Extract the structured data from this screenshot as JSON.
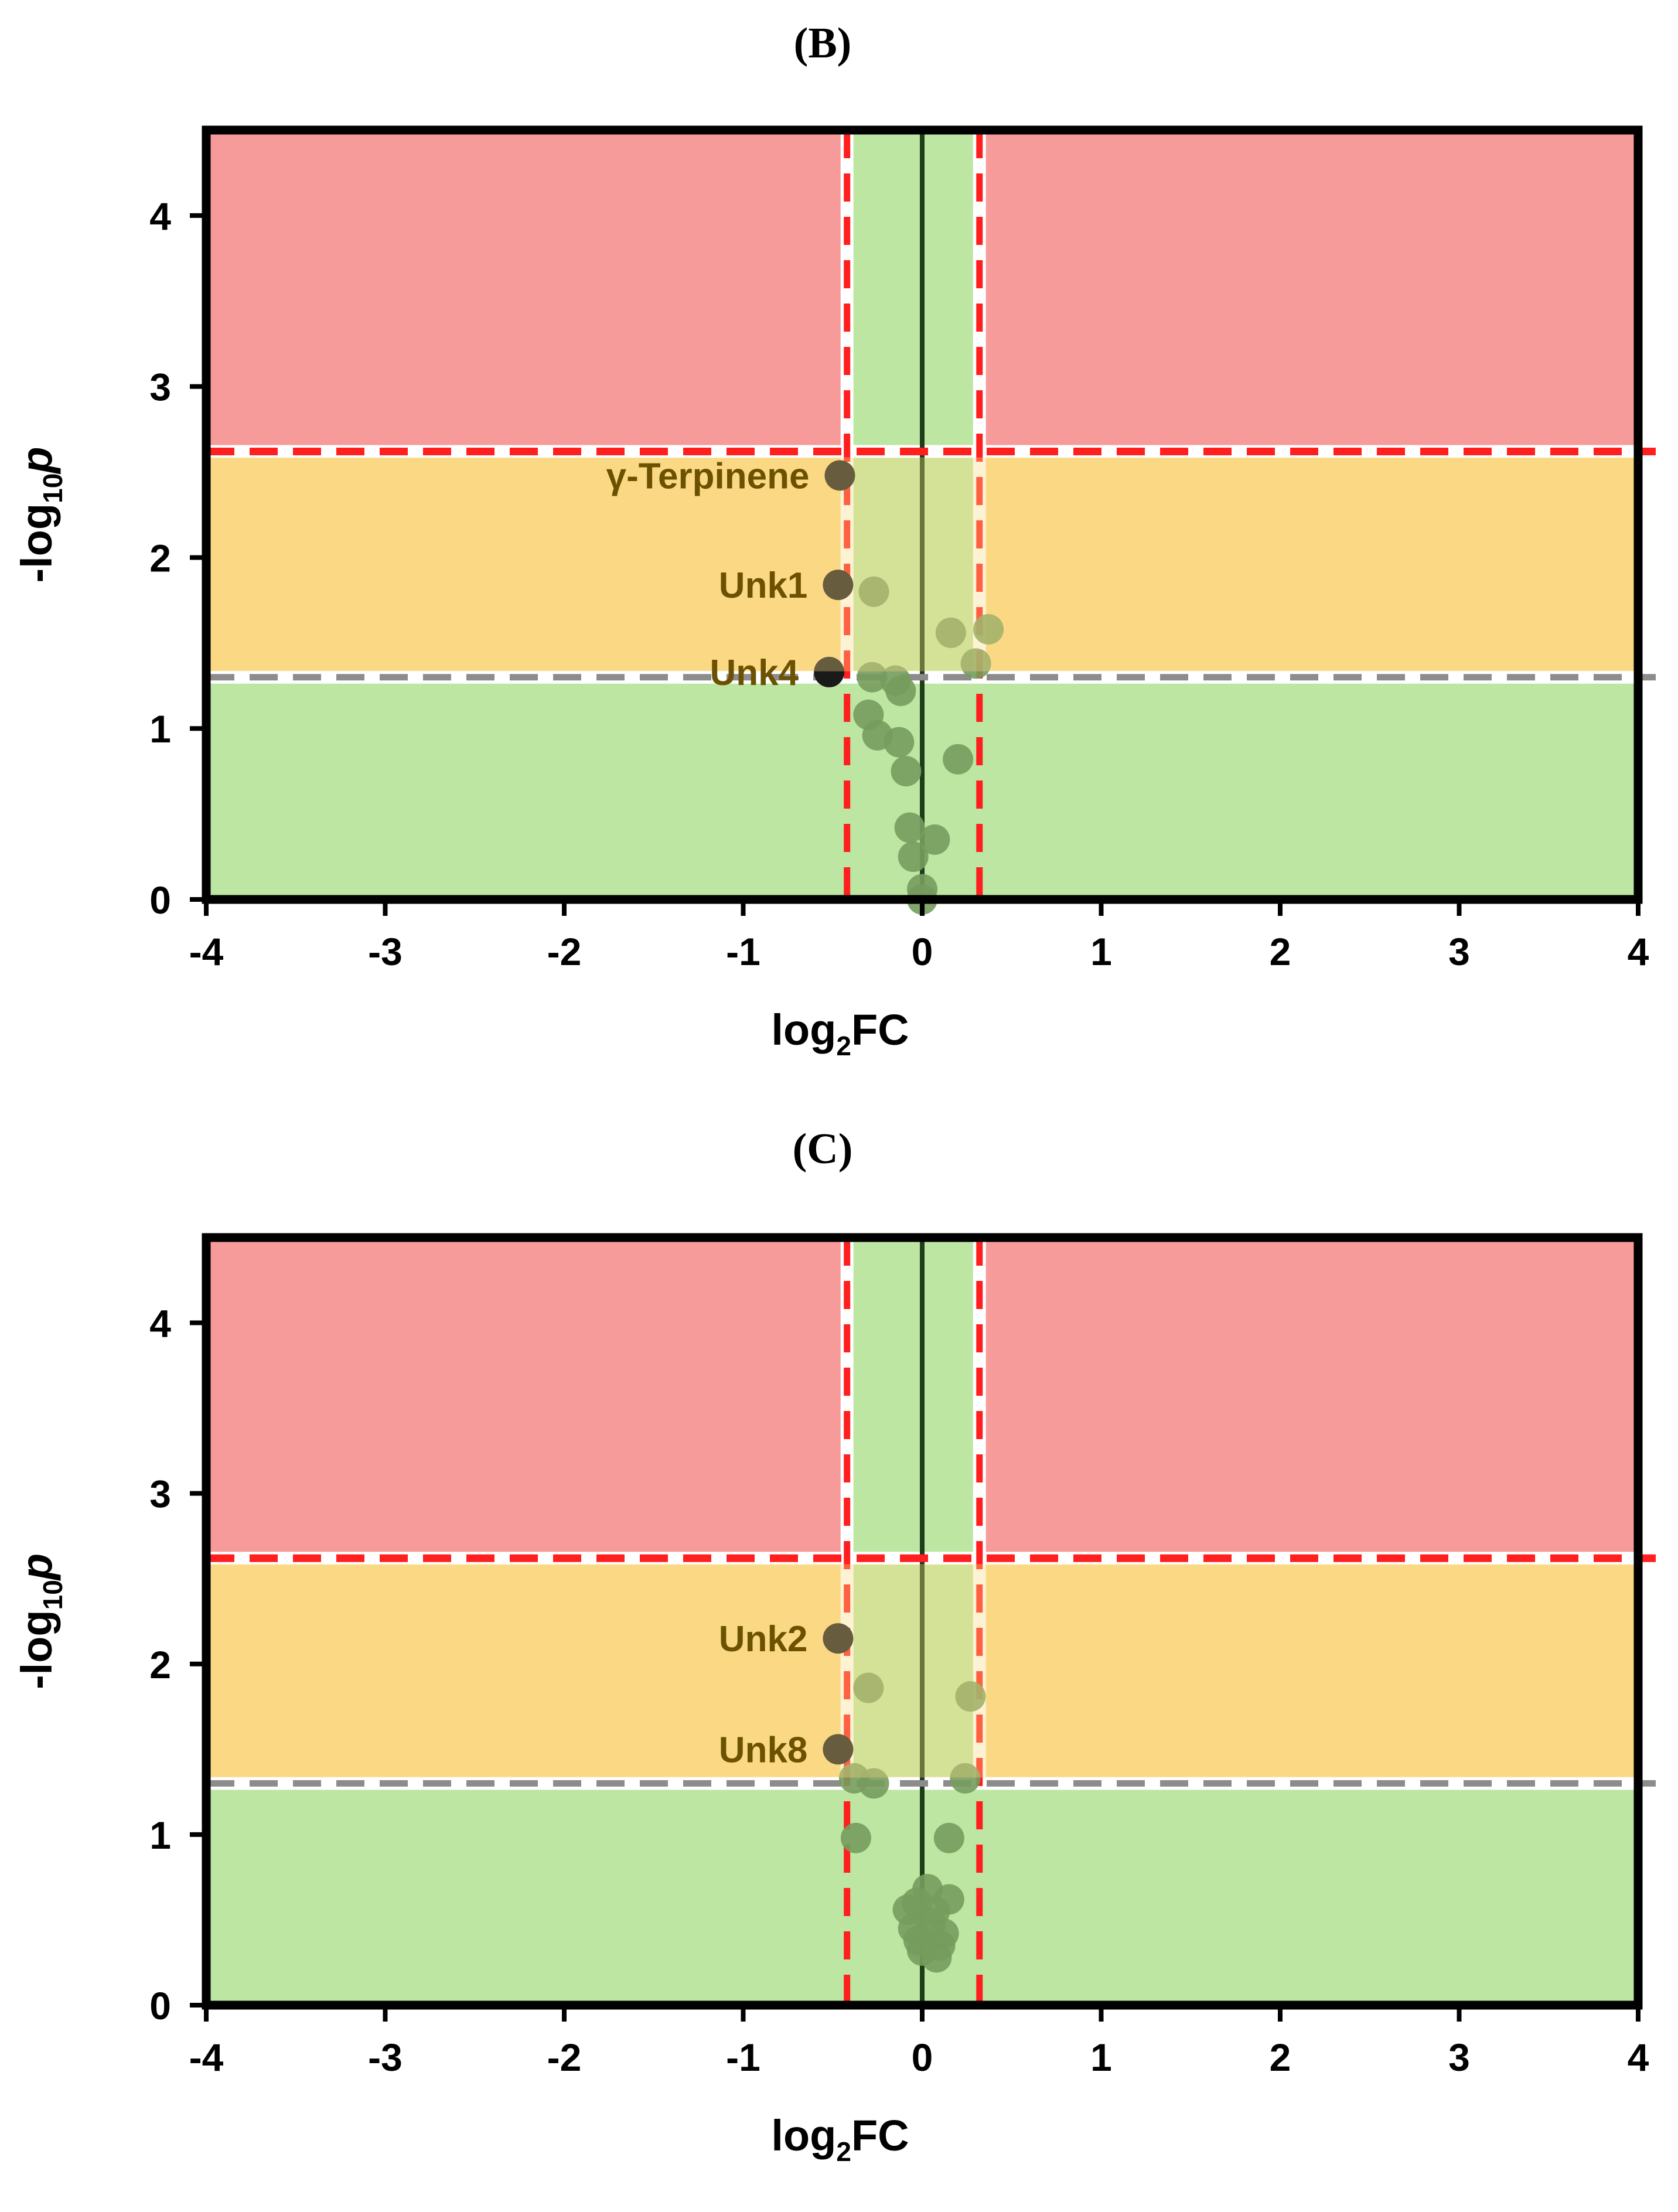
{
  "chart_data": [
    {
      "type": "scatter",
      "title": "(B)",
      "xlabel": "log2FC",
      "ylabel": "-log10p",
      "xlim": [
        -4,
        4
      ],
      "ylim": [
        0,
        4.5
      ],
      "xticks": [
        "-4",
        "-3",
        "-2",
        "-1",
        "0",
        "1",
        "2",
        "3",
        "4"
      ],
      "yticks": [
        "0",
        "1",
        "2",
        "3",
        "4"
      ],
      "thresholds": {
        "fc_low": -0.42,
        "fc_high": 0.32,
        "p_sig": 1.3,
        "p_strict": 2.62
      },
      "colors": {
        "high": "#f79a9a",
        "mid": "#fbd985",
        "low": "#bde6a2",
        "point": "#759c5d",
        "labeled": "#1a1a1a",
        "threshold_strict": "#ff1f1f",
        "threshold_sig": "#8c8c8c"
      },
      "labeled_points": [
        {
          "label": "γ-Terpinene",
          "x": -0.46,
          "y": 2.48
        },
        {
          "label": "Unk1",
          "x": -0.47,
          "y": 1.84
        },
        {
          "label": "Unk4",
          "x": -0.52,
          "y": 1.33
        }
      ],
      "points": [
        {
          "x": -0.27,
          "y": 1.8
        },
        {
          "x": 0.16,
          "y": 1.56
        },
        {
          "x": 0.37,
          "y": 1.58
        },
        {
          "x": 0.3,
          "y": 1.38
        },
        {
          "x": -0.28,
          "y": 1.3
        },
        {
          "x": -0.15,
          "y": 1.28
        },
        {
          "x": -0.12,
          "y": 1.22
        },
        {
          "x": -0.3,
          "y": 1.08
        },
        {
          "x": -0.25,
          "y": 0.96
        },
        {
          "x": -0.13,
          "y": 0.92
        },
        {
          "x": 0.2,
          "y": 0.82
        },
        {
          "x": -0.09,
          "y": 0.75
        },
        {
          "x": -0.07,
          "y": 0.42
        },
        {
          "x": 0.07,
          "y": 0.35
        },
        {
          "x": -0.05,
          "y": 0.25
        },
        {
          "x": 0.0,
          "y": 0.06
        },
        {
          "x": 0.0,
          "y": 0.0
        }
      ]
    },
    {
      "type": "scatter",
      "title": "(C)",
      "xlabel": "log2FC",
      "ylabel": "-log10p",
      "xlim": [
        -4,
        4
      ],
      "ylim": [
        0,
        4.5
      ],
      "xticks": [
        "-4",
        "-3",
        "-2",
        "-1",
        "0",
        "1",
        "2",
        "3",
        "4"
      ],
      "yticks": [
        "0",
        "1",
        "2",
        "3",
        "4"
      ],
      "thresholds": {
        "fc_low": -0.42,
        "fc_high": 0.32,
        "p_sig": 1.3,
        "p_strict": 2.62
      },
      "colors": {
        "high": "#f79a9a",
        "mid": "#fbd985",
        "low": "#bde6a2",
        "point": "#759c5d",
        "labeled": "#1a1a1a",
        "threshold_strict": "#ff1f1f",
        "threshold_sig": "#8c8c8c"
      },
      "labeled_points": [
        {
          "label": "Unk2",
          "x": -0.47,
          "y": 2.15
        },
        {
          "label": "Unk8",
          "x": -0.47,
          "y": 1.5
        }
      ],
      "points": [
        {
          "x": -0.3,
          "y": 1.86
        },
        {
          "x": 0.27,
          "y": 1.81
        },
        {
          "x": -0.38,
          "y": 1.33
        },
        {
          "x": -0.27,
          "y": 1.3
        },
        {
          "x": 0.24,
          "y": 1.33
        },
        {
          "x": -0.37,
          "y": 0.98
        },
        {
          "x": 0.15,
          "y": 0.98
        },
        {
          "x": 0.03,
          "y": 0.68
        },
        {
          "x": 0.15,
          "y": 0.62
        },
        {
          "x": -0.08,
          "y": 0.56
        },
        {
          "x": -0.03,
          "y": 0.6
        },
        {
          "x": 0.07,
          "y": 0.55
        },
        {
          "x": -0.05,
          "y": 0.45
        },
        {
          "x": 0.05,
          "y": 0.48
        },
        {
          "x": 0.12,
          "y": 0.42
        },
        {
          "x": -0.02,
          "y": 0.38
        },
        {
          "x": 0.1,
          "y": 0.35
        },
        {
          "x": 0.0,
          "y": 0.32
        },
        {
          "x": 0.08,
          "y": 0.28
        }
      ]
    }
  ]
}
